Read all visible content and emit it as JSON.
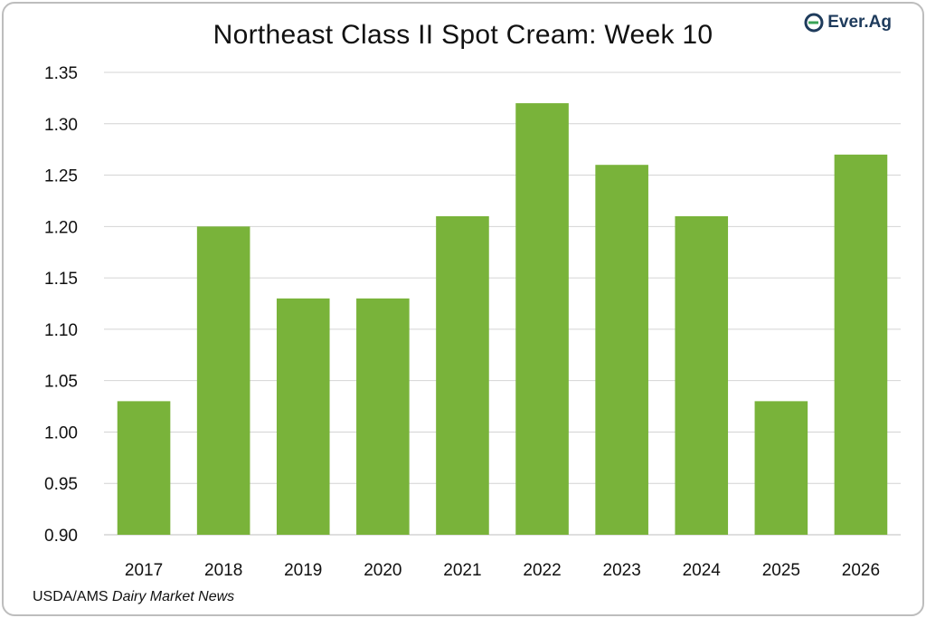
{
  "logo": {
    "icon": "ever-ag-logo-icon",
    "text": "Ever.Ag",
    "color": "#1e3b5c",
    "accent": "#3aa356"
  },
  "source": {
    "prefix": "USDA/AMS ",
    "italic": "Dairy Market News"
  },
  "chart_data": {
    "type": "bar",
    "title": "Northeast Class II Spot Cream: Week 10",
    "xlabel": "",
    "ylabel": "",
    "categories": [
      "2017",
      "2018",
      "2019",
      "2020",
      "2021",
      "2022",
      "2023",
      "2024",
      "2025",
      "2026"
    ],
    "values": [
      1.03,
      1.2,
      1.13,
      1.13,
      1.21,
      1.32,
      1.26,
      1.21,
      1.03,
      1.27
    ],
    "ylim": [
      0.9,
      1.35
    ],
    "yticks": [
      "0.90",
      "0.95",
      "1.00",
      "1.05",
      "1.10",
      "1.15",
      "1.20",
      "1.25",
      "1.30",
      "1.35"
    ],
    "grid": true,
    "legend": "none",
    "bar_color": "#79b33a",
    "grid_color": "#d4d4d4"
  }
}
